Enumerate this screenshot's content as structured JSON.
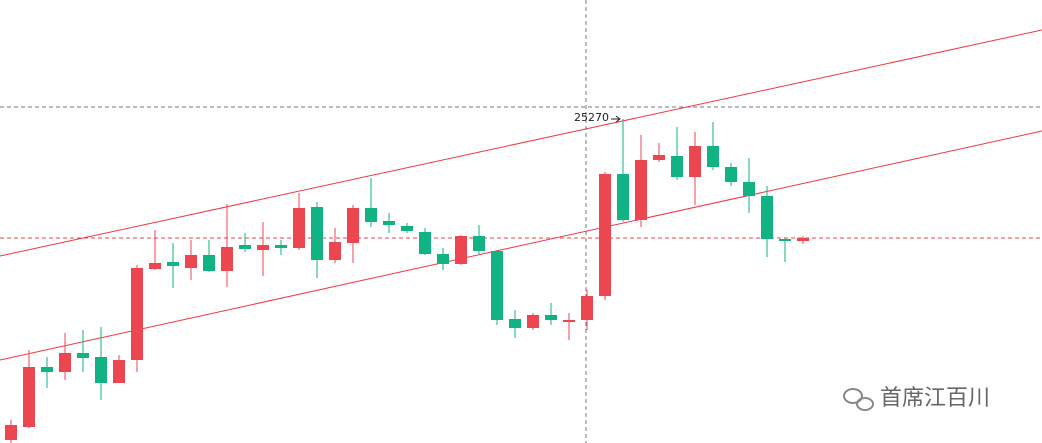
{
  "chart_data": {
    "type": "candlestick",
    "up_color": "#ec4651",
    "down_color": "#11b385",
    "ylim": [
      24946,
      25389
    ],
    "max_label": 25270,
    "watermark": "首席江百川",
    "open": [
      24949,
      24962,
      25022,
      25017,
      25036,
      25032,
      25006,
      25029,
      25120,
      25127,
      25121,
      25134,
      25118,
      25144,
      25139,
      25144,
      25141,
      25182,
      25129,
      25146,
      25181,
      25168,
      25163,
      25157,
      25135,
      25125,
      25153,
      25138,
      25070,
      25061,
      25074,
      25067,
      25069,
      25093,
      25215,
      25169,
      25229,
      25233,
      25212,
      25243,
      25222,
      25207,
      25193,
      25150,
      25148
    ],
    "high": [
      24969,
      25039,
      25032,
      25056,
      25059,
      25062,
      25034,
      25124,
      25159,
      25146,
      25149,
      25149,
      25185,
      25156,
      25167,
      25149,
      25196,
      25187,
      25161,
      25184,
      25211,
      25176,
      25166,
      25161,
      25141,
      25154,
      25164,
      25139,
      25079,
      25076,
      25086,
      25076,
      25099,
      25217,
      25270,
      25254,
      25246,
      25262,
      25257,
      25267,
      25226,
      25231,
      25203,
      25151,
      25153
    ],
    "low": [
      24946,
      24961,
      25001,
      25009,
      25017,
      24989,
      25006,
      25017,
      25119,
      25101,
      25109,
      25117,
      25102,
      25137,
      25113,
      25134,
      25139,
      25111,
      25126,
      25126,
      25162,
      25156,
      25156,
      25134,
      25119,
      25124,
      25134,
      25064,
      25051,
      25059,
      25064,
      25049,
      25059,
      25089,
      25167,
      25162,
      25227,
      25209,
      25184,
      25219,
      25203,
      25176,
      25132,
      25127,
      25145
    ],
    "close": [
      24964,
      25022,
      25017,
      25036,
      25031,
      25006,
      25029,
      25121,
      25126,
      25123,
      25134,
      25118,
      25142,
      25140,
      25144,
      25141,
      25181,
      25129,
      25147,
      25181,
      25167,
      25164,
      25158,
      25135,
      25125,
      25153,
      25138,
      25069,
      25061,
      25074,
      25069,
      25069,
      25093,
      25215,
      25169,
      25229,
      25234,
      25212,
      25243,
      25222,
      25207,
      25193,
      25150,
      25148,
      25151
    ]
  }
}
